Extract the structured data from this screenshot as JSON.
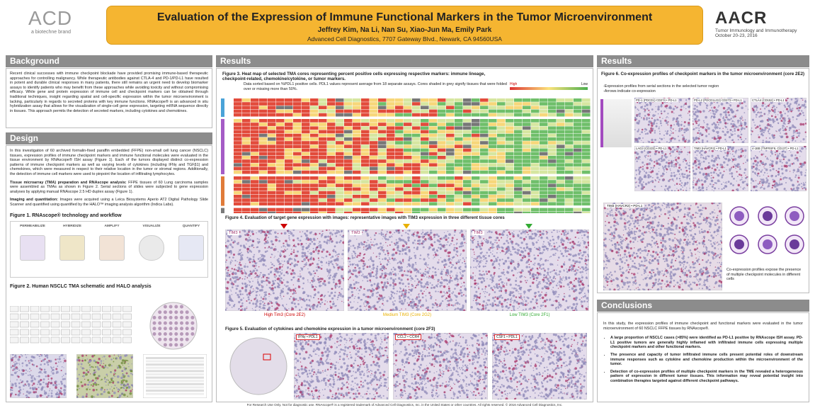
{
  "header": {
    "title": "Evaluation of the Expression of Immune Functional Markers in the Tumor Microenvironment",
    "authors": "Jeffrey Kim, Na Li, Nan Su, Xiao-Jun Ma, Emily Park",
    "affiliation": "Advanced Cell Diagnostics, 7707 Gateway Blvd., Newark, CA 94560USA",
    "logo_left": "ACD",
    "logo_left_sub": "a biotechne brand",
    "logo_right": "AACR",
    "conference": "Tumor Immunology and Immunotherapy",
    "dates": "October 20-23, 2016"
  },
  "background": {
    "heading": "Background",
    "text": "Recent clinical successes with immune checkpoint blockade have provided promising immune-based therapeutic approaches for controlling malignancy. While therapeutic antibodies against CTLA-4 and PD-1/PD-L1 have resulted in potent and durable clinical responses in many patients, there still remains an urgent need to develop biomarker assays to identify patients who may benefit from these approaches while avoiding toxicity and without compromising efficacy. While gene and protein expression of immune cell and checkpoint markers can be obtained through traditional techniques, insight regarding spatial and cell-specific expression within the tumor microenvironment is lacking, particularly in regards to secreted proteins with key immune functions. RNAscope® is an advanced in situ hybridization assay that allows for the visualization of single-cell gene expression, targeting mRNA sequence directly in tissues. This approach permits the detection of secreted markers, including cytokines and chemokines."
  },
  "design": {
    "heading": "Design",
    "intro": "In this investigation of 60 archived formalin-fixed paraffin embedded (FFPE) non-small cell lung cancer (NSCLC) tissues, expression profiles of immune checkpoint markers and immune functional molecules were evaluated in the tissue environment by RNAscope® ISH assay (Figure 1). Each of the tumors displayed distinct co-expression patterns of immune checkpoint markers as well as varying levels of cytokines (including IFNγ and TGFβ1) and chemokines, which were measured in respect to their relative location in the tumor or stromal regions. Additionally, the detection of immune cell markers were used to pinpoint the location of infiltrating lymphocytes.",
    "tma_lead": "Tissue microarray (TMA) preparation and RNAscope analysis:",
    "tma_text": "FFPE tissues of 60 Lung carcinoma samples were assembled as TMAs as shown in Figure 2. Serial sections of slides were subjected to gene expression analyses by applying manual RNAscope 2.5 HD duplex assay (Figure 1).",
    "imaging_lead": "Imaging and quantitation:",
    "imaging_text": "Images were acquired using a Leica Biosystems Aperio AT2 Digital Pathology Slide Scanner and quantified using quantified by the HALO™ imaging analysis algorithm (Indica Labs).",
    "figure1": "Figure 1. RNAscope® technology and workflow",
    "figure1_steps": [
      "PERMEABILIZE",
      "HYBRIDIZE",
      "AMPLIFY",
      "VISUALIZE",
      "QUANTIFY"
    ],
    "figure2": "Figure 2. Human NSCLC TMA schematic and HALO analysis"
  },
  "results": {
    "heading": "Results",
    "figure3_title": "Figure 3. Heat map of selected TMA cores representing percent positive cells expressing respective markers: immune lineage, checkpoint-related, chemokine/cytokine, or tumor markers.",
    "figure3_note": "Data sorted based on %PDL1 positive cells. PDL1 values represent average from 18 separate assays. Cores shaded in grey signify tissues that were folded over or missing more than 50%.",
    "legend_high": "High",
    "legend_low": "Low",
    "figure4_title": "Figure 4. Evaluation of target gene expression with images: representative images with TIM3 expression in three different tissue cores",
    "figure4_labels": [
      "TIM3",
      "TIM3",
      "TIM3"
    ],
    "figure4_captions": [
      "High Tim3 (Core 2E2)",
      "Medium TIM3 (Core 2G2)",
      "Low TIM3 (Core 2F1)"
    ],
    "figure5_title": "Figure 5. Evaluation of cytokines and chemokine expression in a tumor microenvironment (core 2F3)",
    "figure5_panels": [
      "IFNγ • PDL1",
      "CCL2 • CCR4",
      "CSF1 • PDL1"
    ]
  },
  "results_right": {
    "heading": "Results",
    "figure6_title": "Figure 6. Co-expression profiles of checkpoint markers in the tumor microenvironment (core 2E2)",
    "figure6_notes": [
      "-Expression profiles from serial sections in the selected tumor region",
      "-Arrows indicate co-expression"
    ],
    "figure6_panels": [
      "PD-1 (PDCD1) CD274 • PD-L1",
      "PD-L2 (PDCD1LG2) CD273 • PD-L1",
      "CTLA4 (CD152) • PD-L1",
      "LAG3 (CD223) • PD-L1",
      "TIM3 (HAVCR2) • PD-L1",
      "4-1BB (TNFRSF9, CD137) • PD-L1"
    ],
    "figure6_large_panel": "TIM3 (HAVCR2) • PD-L1",
    "figure6_caption": "Co-expression profiles expose the presence of multiple checkpoint molecules in different cells"
  },
  "conclusions": {
    "heading": "Conclusions",
    "intro": "In this study, the expression profiles of immune checkpoint and functional markers were evaluated in the tumor microenvironment of 60 NSCLC FFPE tissues by RNAscope®.",
    "bullets": [
      "A large proportion of NSCLC cases (>85%) were identified as PD-L1 positive by RNAscope ISH assay. PD-L1 positive tumors are generally highly inflamed with infiltrated immune cells expressing multiple checkpoint markers and other functional markers.",
      "The presence and capacity of tumor infiltrated immune cells present potential roles of downstream immune responses such as cytokine and chemokine production within the microenvironment of the tumor.",
      "Detection of co-expression profiles of multiple checkpoint markers in the TME revealed a heterogeneous pattern of expression in different tumor tissues. This information may reveal potential insight into combination therapies targeted against different checkpoint pathways."
    ]
  },
  "footer": "For Research Use Only. Not for diagnostic use. RNAscope® is a registered trademark of Advanced Cell Diagnostics, Inc. in the United States or other countries. All rights reserved. © 2016 Advanced Cell Diagnostics, Inc."
}
